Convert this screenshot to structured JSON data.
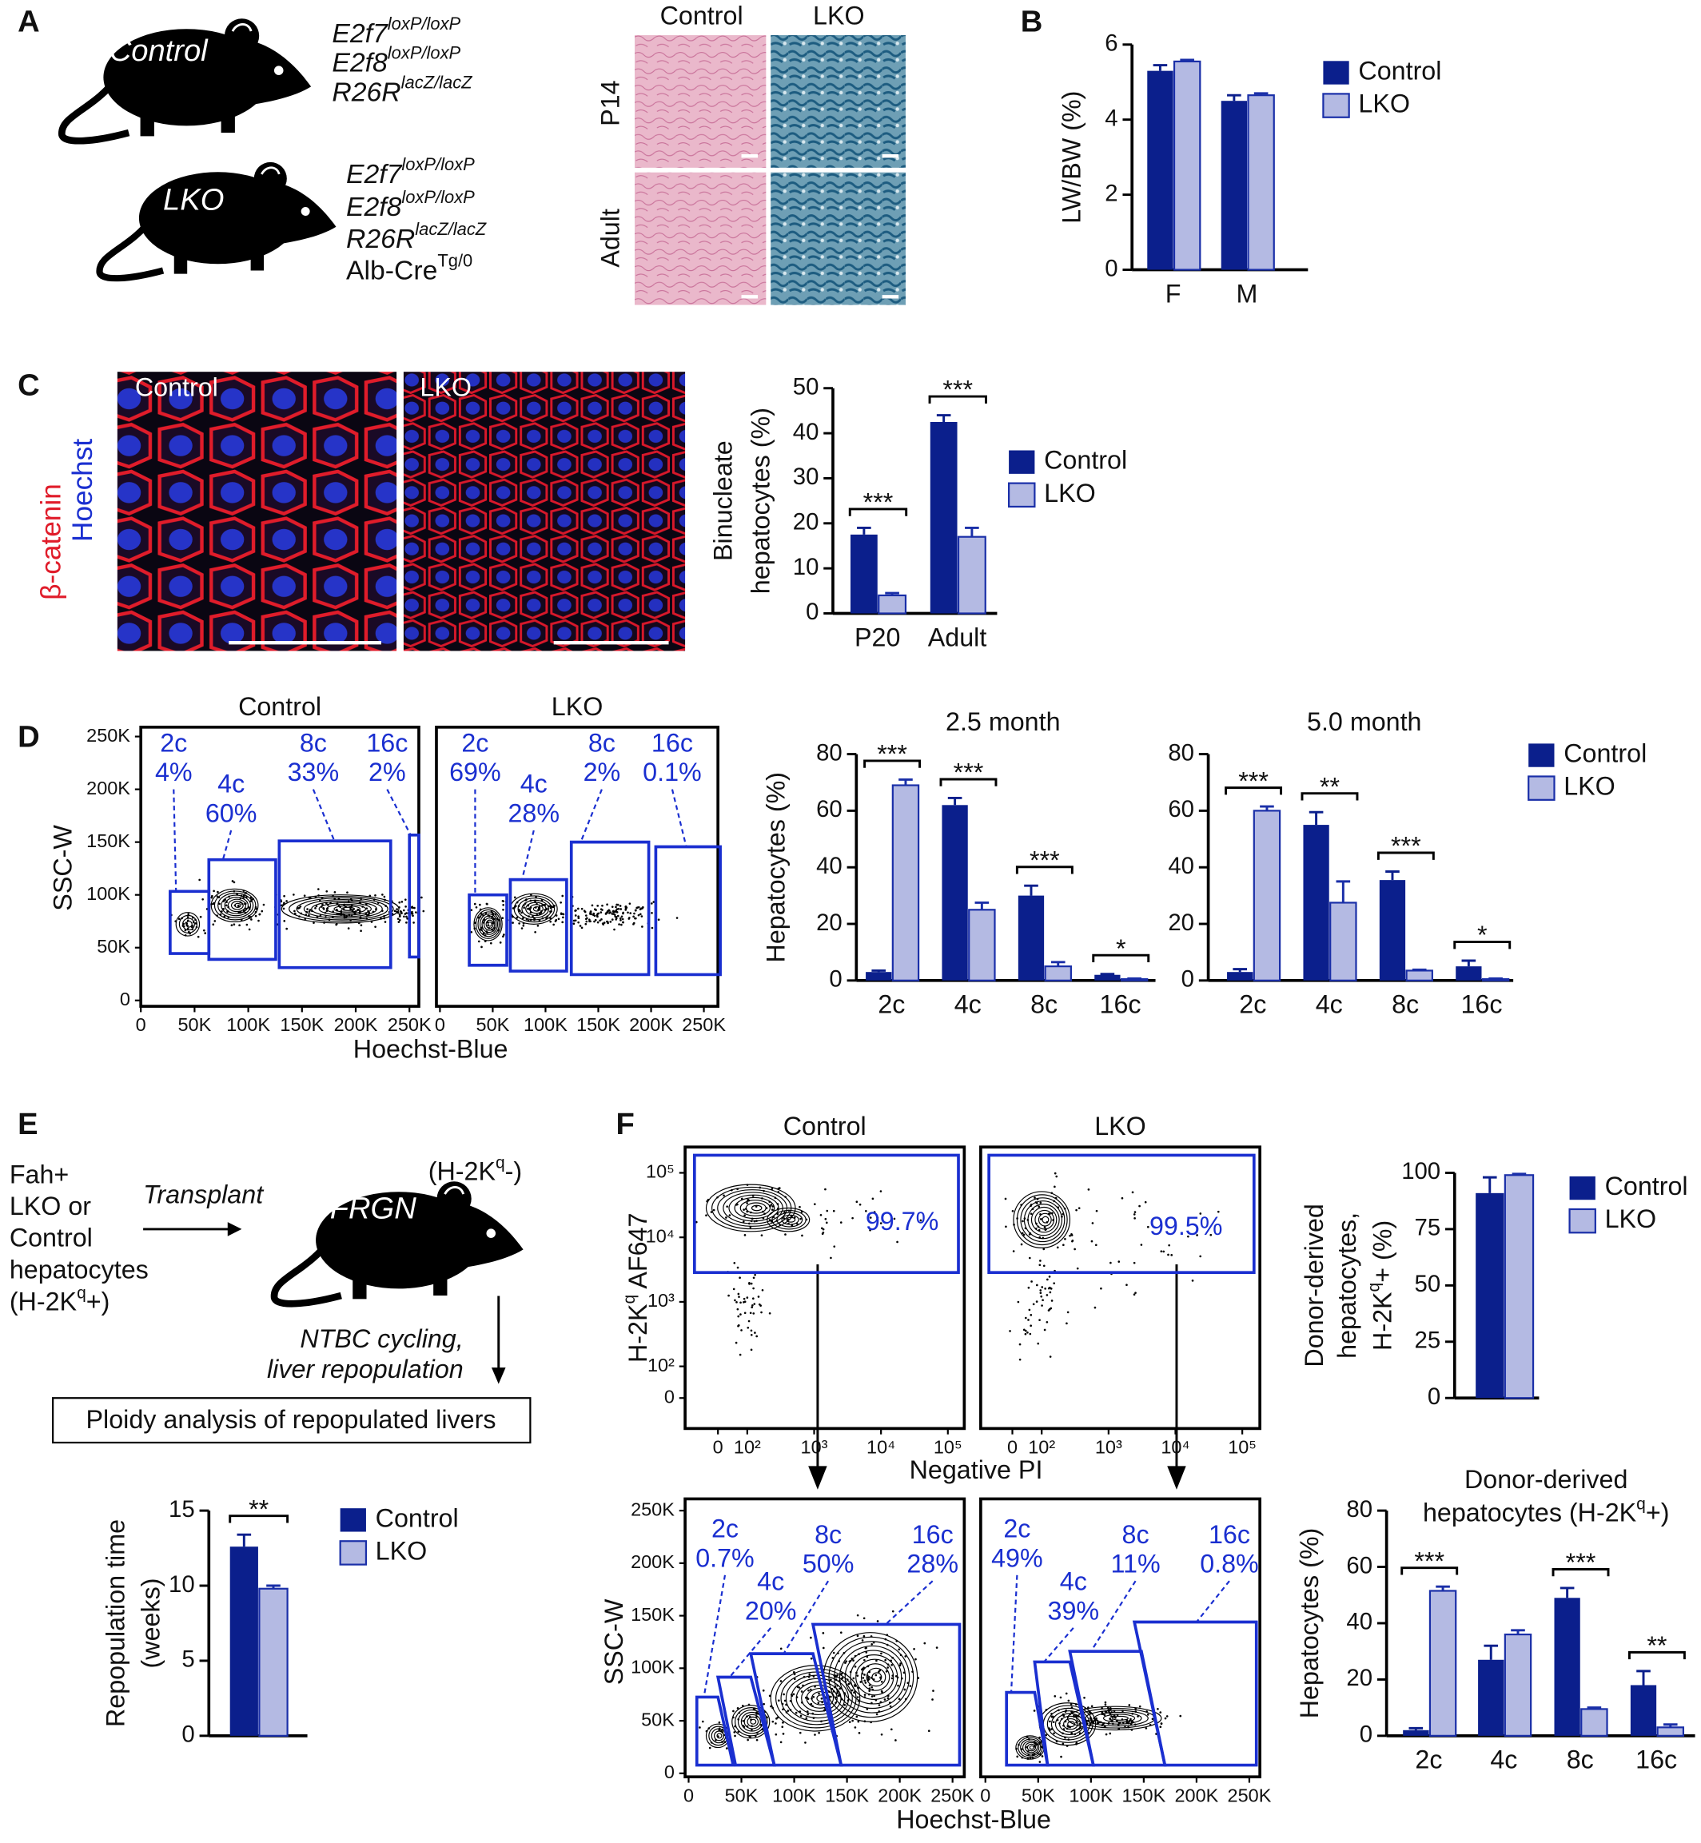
{
  "panel_labels": [
    "A",
    "B",
    "C",
    "D",
    "E",
    "F"
  ],
  "panel_a": {
    "mice": [
      {
        "label": "Control",
        "genotype": [
          {
            "base": "E2f7",
            "sup": "loxP/loxP"
          },
          {
            "base": "E2f8",
            "sup": "loxP/loxP"
          },
          {
            "base": "R26R",
            "sup": "lacZ/lacZ"
          }
        ]
      },
      {
        "label": "LKO",
        "genotype": [
          {
            "base": "E2f7",
            "sup": "loxP/loxP"
          },
          {
            "base": "E2f8",
            "sup": "loxP/loxP"
          },
          {
            "base": "R26R",
            "sup": "lacZ/lacZ"
          },
          {
            "base": "Alb-Cre",
            "sup": "Tg/0"
          }
        ]
      }
    ],
    "histology": {
      "columns": [
        "Control",
        "LKO"
      ],
      "rows": [
        "P14",
        "Adult"
      ]
    }
  },
  "panel_c": {
    "stains": [
      "β-catenin",
      "Hoechst"
    ],
    "images": [
      "Control",
      "LKO"
    ]
  },
  "panel_e": {
    "donor": [
      "Fah+",
      "LKO or",
      "Control",
      "hepatocytes",
      {
        "base": "(H-2K",
        "sup": "q",
        "tail": "+)"
      }
    ],
    "transplant": "Transplant",
    "recipient": "FRGN",
    "recipient_note": {
      "base": "(H-2K",
      "sup": "q",
      "tail": "-)"
    },
    "steps": [
      "NTBC cycling,",
      "liver repopulation"
    ],
    "box": "Ploidy analysis of repopulated livers"
  },
  "chart_data": [
    {
      "type": "bar",
      "ylabel": [
        "LW/BW (%)"
      ],
      "categories": [
        "F",
        "M"
      ],
      "series": [
        {
          "name": "Control",
          "color": "#0b1f8c",
          "values": [
            5.3,
            4.5
          ],
          "errors": [
            0.15,
            0.15
          ]
        },
        {
          "name": "LKO",
          "color": "#b4bae3",
          "edgecolor": "#1a2fa8",
          "values": [
            5.55,
            4.65
          ],
          "errors": [
            0.04,
            0.05
          ]
        }
      ],
      "ylim": [
        0,
        6
      ],
      "yticks": [
        0,
        2,
        4,
        6
      ]
    },
    {
      "type": "bar",
      "ylabel": [
        "Binucleate",
        "hepatocytes (%)"
      ],
      "categories": [
        "P20",
        "Adult"
      ],
      "series": [
        {
          "name": "Control",
          "color": "#0b1f8c",
          "values": [
            17.5,
            42.5
          ],
          "errors": [
            1.5,
            1.5
          ]
        },
        {
          "name": "LKO",
          "color": "#b4bae3",
          "edgecolor": "#1a2fa8",
          "values": [
            4,
            17
          ],
          "errors": [
            0.5,
            2
          ]
        }
      ],
      "significance": [
        "***",
        "***"
      ],
      "ylim": [
        0,
        50
      ],
      "yticks": [
        0,
        10,
        20,
        30,
        40,
        50
      ]
    },
    {
      "type": "bar",
      "title": [
        "2.5 month"
      ],
      "ylabel": [
        "Hepatocytes (%)"
      ],
      "categories": [
        "2c",
        "4c",
        "8c",
        "16c"
      ],
      "series": [
        {
          "color": "#0b1f8c",
          "values": [
            3,
            62,
            30,
            2
          ],
          "errors": [
            0.5,
            2.5,
            3.5,
            0.3
          ]
        },
        {
          "color": "#b4bae3",
          "edgecolor": "#1a2fa8",
          "values": [
            69,
            25,
            5,
            0.5
          ],
          "errors": [
            2,
            2.5,
            1.5,
            0.2
          ]
        }
      ],
      "significance": [
        "***",
        "***",
        "***",
        "*"
      ],
      "ylim": [
        0,
        80
      ],
      "yticks": [
        0,
        20,
        40,
        60,
        80
      ]
    },
    {
      "type": "bar",
      "title": [
        "5.0 month"
      ],
      "categories": [
        "2c",
        "4c",
        "8c",
        "16c"
      ],
      "series": [
        {
          "name": "Control",
          "color": "#0b1f8c",
          "values": [
            3,
            55,
            35.5,
            5
          ],
          "errors": [
            1,
            4.5,
            3,
            2
          ]
        },
        {
          "name": "LKO",
          "color": "#b4bae3",
          "edgecolor": "#1a2fa8",
          "values": [
            60,
            27.5,
            3.5,
            0.5
          ],
          "errors": [
            1.5,
            7.5,
            0.3,
            0.2
          ]
        }
      ],
      "significance": [
        "***",
        "**",
        "***",
        "*"
      ],
      "ylim": [
        0,
        80
      ],
      "yticks": [
        0,
        20,
        40,
        60,
        80
      ]
    },
    {
      "type": "bar",
      "ylabel": [
        "Repopulation time",
        "(weeks)"
      ],
      "series": [
        {
          "name": "Control",
          "color": "#0b1f8c",
          "values": [
            12.6
          ],
          "errors": [
            0.8
          ]
        },
        {
          "name": "LKO",
          "color": "#b4bae3",
          "edgecolor": "#1a2fa8",
          "values": [
            9.8
          ],
          "errors": [
            0.2
          ]
        }
      ],
      "significance": [
        "**"
      ],
      "ylim": [
        0,
        15
      ],
      "yticks": [
        0,
        5,
        10,
        15
      ]
    },
    {
      "type": "bar",
      "ylabel": [
        "Donor-derived",
        "hepatocytes,",
        {
          "base": "H-2K",
          "sup": "q",
          "tail": "+ (%)"
        }
      ],
      "series": [
        {
          "name": "Control",
          "color": "#0b1f8c",
          "values": [
            91
          ],
          "errors": [
            7
          ]
        },
        {
          "name": "LKO",
          "color": "#b4bae3",
          "edgecolor": "#1a2fa8",
          "values": [
            99
          ],
          "errors": [
            0.5
          ]
        }
      ],
      "ylim": [
        0,
        100
      ],
      "yticks": [
        0,
        25,
        50,
        75,
        100
      ]
    },
    {
      "type": "bar",
      "title": [
        "Donor-derived",
        {
          "base": "hepatocytes (H-2K",
          "sup": "q",
          "tail": "+)"
        }
      ],
      "ylabel": [
        "Hepatocytes (%)"
      ],
      "categories": [
        "2c",
        "4c",
        "8c",
        "16c"
      ],
      "series": [
        {
          "color": "#0b1f8c",
          "values": [
            2,
            27,
            49,
            18
          ],
          "errors": [
            0.7,
            5,
            3.5,
            5
          ]
        },
        {
          "color": "#b4bae3",
          "edgecolor": "#1a2fa8",
          "values": [
            51.5,
            36,
            9.5,
            3
          ],
          "errors": [
            1.5,
            1.5,
            0.5,
            1
          ]
        }
      ],
      "significance": [
        "***",
        null,
        "***",
        "**"
      ],
      "ylim": [
        0,
        80
      ],
      "yticks": [
        0,
        20,
        40,
        60,
        80
      ]
    }
  ],
  "flow_d": {
    "xlabel": "Hoechst-Blue",
    "ylabel": "SSC-W",
    "xticks": [
      0,
      {
        "value": 50000,
        "label": "50K"
      },
      {
        "value": 100000,
        "label": "100K"
      },
      {
        "value": 150000,
        "label": "150K"
      },
      {
        "value": 200000,
        "label": "200K"
      },
      {
        "value": 250000,
        "label": "250K"
      }
    ],
    "yticks": [
      0,
      {
        "value": 50000,
        "label": "50K"
      },
      {
        "value": 100000,
        "label": "100K"
      },
      {
        "value": 150000,
        "label": "150K"
      },
      {
        "value": 200000,
        "label": "200K"
      },
      {
        "value": 250000,
        "label": "250K"
      }
    ],
    "plots": [
      {
        "title": "Control",
        "gates": [
          {
            "ploidy": "2c",
            "percent": "4%"
          },
          {
            "ploidy": "4c",
            "percent": "60%"
          },
          {
            "ploidy": "8c",
            "percent": "33%"
          },
          {
            "ploidy": "16c",
            "percent": "2%"
          }
        ]
      },
      {
        "title": "LKO",
        "gates": [
          {
            "ploidy": "2c",
            "percent": "69%"
          },
          {
            "ploidy": "4c",
            "percent": "28%"
          },
          {
            "ploidy": "8c",
            "percent": "2%"
          },
          {
            "ploidy": "16c",
            "percent": "0.1%"
          }
        ]
      }
    ]
  },
  "flow_f_top": {
    "xlabel": "Negative PI",
    "ylabel": {
      "base": "H-2K",
      "sup": "q",
      "tail": " AF647"
    },
    "xticks": [
      0,
      {
        "value": 100,
        "label": "10²"
      },
      {
        "value": 1000,
        "label": "10³"
      },
      {
        "value": 10000,
        "label": "10⁴"
      },
      {
        "value": 100000,
        "label": "10⁵"
      }
    ],
    "yticks": [
      0,
      {
        "value": 100,
        "label": "10²"
      },
      {
        "value": 1000,
        "label": "10³"
      },
      {
        "value": 10000,
        "label": "10⁴"
      },
      {
        "value": 100000,
        "label": "10⁵"
      }
    ],
    "plots": [
      {
        "title": "Control",
        "gate": "99.7%"
      },
      {
        "title": "LKO",
        "gate": "99.5%"
      }
    ]
  },
  "flow_f_bottom": {
    "xlabel": "Hoechst-Blue",
    "ylabel": "SSC-W",
    "xticks": [
      0,
      {
        "value": 50000,
        "label": "50K"
      },
      {
        "value": 100000,
        "label": "100K"
      },
      {
        "value": 150000,
        "label": "150K"
      },
      {
        "value": 200000,
        "label": "200K"
      },
      {
        "value": 250000,
        "label": "250K"
      }
    ],
    "yticks": [
      0,
      {
        "value": 50000,
        "label": "50K"
      },
      {
        "value": 100000,
        "label": "100K"
      },
      {
        "value": 150000,
        "label": "150K"
      },
      {
        "value": 200000,
        "label": "200K"
      },
      {
        "value": 250000,
        "label": "250K"
      }
    ],
    "plots": [
      {
        "gates": [
          {
            "ploidy": "2c",
            "percent": "0.7%"
          },
          {
            "ploidy": "4c",
            "percent": "20%"
          },
          {
            "ploidy": "8c",
            "percent": "50%"
          },
          {
            "ploidy": "16c",
            "percent": "28%"
          }
        ]
      },
      {
        "gates": [
          {
            "ploidy": "2c",
            "percent": "49%"
          },
          {
            "ploidy": "4c",
            "percent": "39%"
          },
          {
            "ploidy": "8c",
            "percent": "11%"
          },
          {
            "ploidy": "16c",
            "percent": "0.8%"
          }
        ]
      }
    ]
  }
}
